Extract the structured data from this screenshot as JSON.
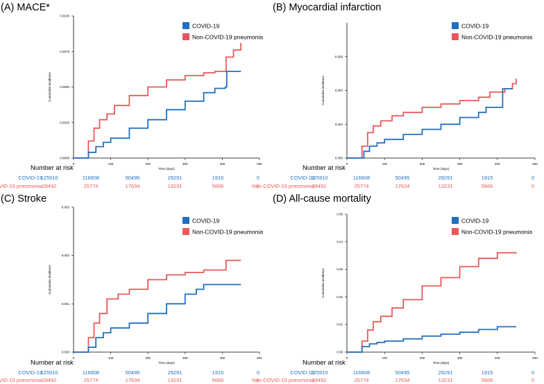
{
  "colors": {
    "covid": "#1f6fbf",
    "noncovid": "#e8585a",
    "axis": "#000000",
    "text": "#000000"
  },
  "risk_table": {
    "label": "Number at risk",
    "rows": [
      {
        "name": "COVID-19",
        "color": "#1f6fbf",
        "counts": [
          "125910",
          "116608",
          "50495",
          "29291",
          "1915",
          "0"
        ]
      },
      {
        "name": "Non-COVID-19 pneumonia",
        "color": "#e8585a",
        "counts": [
          "28492",
          "25774",
          "17634",
          "13231",
          "5666",
          "0"
        ]
      }
    ]
  },
  "chart_data": [
    {
      "type": "line",
      "title": "(A) MACE*",
      "xlabel": "Time (days)",
      "ylabel": "Cumulative incidence",
      "xlim": [
        0,
        500
      ],
      "ylim": [
        0,
        0.01
      ],
      "xticks": [
        0,
        100,
        200,
        300,
        400,
        500
      ],
      "xtick_labels": [
        "0",
        "100",
        "200",
        "300",
        "400",
        "500"
      ],
      "yticks": [
        0,
        0.0025,
        0.005,
        0.0075,
        0.01
      ],
      "ytick_labels": [
        "0.0000",
        "0.0025",
        "0.0050",
        "0.0075",
        "0.0100"
      ],
      "legend": [
        "COVID-19",
        "Non-COVID-19 pneumonia"
      ],
      "series": [
        {
          "name": "COVID-19",
          "x": [
            0,
            30,
            40,
            60,
            80,
            100,
            150,
            200,
            250,
            300,
            350,
            380,
            408,
            412,
            450
          ],
          "y": [
            0,
            0,
            0.0004,
            0.0008,
            0.0011,
            0.0014,
            0.0021,
            0.0027,
            0.0034,
            0.004,
            0.0046,
            0.0049,
            0.005,
            0.0061,
            0.0061
          ]
        },
        {
          "name": "Non-COVID-19 pneumonia",
          "x": [
            0,
            30,
            40,
            55,
            70,
            90,
            110,
            150,
            200,
            250,
            300,
            350,
            380,
            410,
            430,
            450
          ],
          "y": [
            0,
            0,
            0.0012,
            0.0021,
            0.0027,
            0.0031,
            0.0037,
            0.0044,
            0.005,
            0.0055,
            0.0058,
            0.006,
            0.0061,
            0.0071,
            0.0076,
            0.0081
          ]
        }
      ]
    },
    {
      "type": "line",
      "title": "(B) Myocardial infarction",
      "xlabel": "Time (days)",
      "ylabel": "Cumulative incidence",
      "xlim": [
        0,
        500
      ],
      "ylim": [
        0,
        0.008
      ],
      "xticks": [
        0,
        100,
        200,
        300,
        400,
        500
      ],
      "xtick_labels": [
        "0",
        "100",
        "200",
        "300",
        "400",
        "500"
      ],
      "yticks": [
        0,
        0.002,
        0.004,
        0.006
      ],
      "ytick_labels": [
        "0.000",
        "0.002",
        "0.004",
        "0.006"
      ],
      "legend": [
        "COVID-19",
        "Non-COVID-19 pneumonia"
      ],
      "series": [
        {
          "name": "COVID-19",
          "x": [
            0,
            30,
            45,
            60,
            80,
            100,
            150,
            200,
            250,
            300,
            350,
            370,
            412,
            414,
            440
          ],
          "y": [
            0,
            0,
            0.0004,
            0.0007,
            0.0009,
            0.0011,
            0.0014,
            0.0017,
            0.002,
            0.0024,
            0.0027,
            0.003,
            0.003,
            0.0041,
            0.0041
          ]
        },
        {
          "name": "Non-COVID-19 pneumonia",
          "x": [
            0,
            30,
            40,
            55,
            70,
            90,
            120,
            150,
            200,
            250,
            300,
            350,
            380,
            420,
            440,
            450
          ],
          "y": [
            0,
            0,
            0.0007,
            0.0015,
            0.0019,
            0.0022,
            0.0025,
            0.0027,
            0.003,
            0.0032,
            0.0034,
            0.0036,
            0.0039,
            0.0041,
            0.0044,
            0.0047
          ]
        }
      ]
    },
    {
      "type": "line",
      "title": "(C) Stroke",
      "xlabel": "Time (days)",
      "ylabel": "Cumulative incidence",
      "xlim": [
        0,
        500
      ],
      "ylim": [
        0,
        0.003
      ],
      "xticks": [
        0,
        100,
        200,
        300,
        400,
        500
      ],
      "xtick_labels": [
        "0",
        "100",
        "200",
        "300",
        "400",
        "500"
      ],
      "yticks": [
        0,
        0.001,
        0.002,
        0.003
      ],
      "ytick_labels": [
        "0.000",
        "0.001",
        "0.002",
        "0.003"
      ],
      "legend": [
        "COVID-19",
        "Non-COVID-19 pneumonia"
      ],
      "series": [
        {
          "name": "COVID-19",
          "x": [
            0,
            30,
            40,
            60,
            80,
            100,
            150,
            200,
            250,
            300,
            330,
            350,
            450
          ],
          "y": [
            0,
            0,
            0.0001,
            0.0003,
            0.0004,
            0.0005,
            0.0006,
            0.0008,
            0.001,
            0.0012,
            0.0013,
            0.0014,
            0.0014
          ]
        },
        {
          "name": "Non-COVID-19 pneumonia",
          "x": [
            0,
            30,
            40,
            55,
            70,
            90,
            120,
            150,
            200,
            250,
            300,
            350,
            400,
            410,
            420,
            450
          ],
          "y": [
            0,
            0,
            0.0003,
            0.0006,
            0.0008,
            0.0011,
            0.0012,
            0.0013,
            0.0015,
            0.0016,
            0.00165,
            0.0017,
            0.0017,
            0.0019,
            0.0019,
            0.0019
          ]
        }
      ]
    },
    {
      "type": "line",
      "title": "(D) All-cause mortality",
      "xlabel": "Time (days)",
      "ylabel": "Cumulative incidence",
      "xlim": [
        0,
        500
      ],
      "ylim": [
        0,
        0.05
      ],
      "xticks": [
        0,
        100,
        200,
        300,
        400,
        500
      ],
      "xtick_labels": [
        "0",
        "100",
        "200",
        "300",
        "400",
        "500"
      ],
      "yticks": [
        0,
        0.01,
        0.02,
        0.03,
        0.04,
        0.05
      ],
      "ytick_labels": [
        "0.00",
        "0.01",
        "0.02",
        "0.03",
        "0.04",
        "0.05"
      ],
      "legend": [
        "COVID-19",
        "Non-COVID-19 pneumonia"
      ],
      "series": [
        {
          "name": "COVID-19",
          "x": [
            0,
            30,
            40,
            60,
            80,
            100,
            150,
            200,
            250,
            300,
            350,
            400,
            450
          ],
          "y": [
            0,
            0,
            0.002,
            0.003,
            0.0035,
            0.004,
            0.0048,
            0.0058,
            0.0065,
            0.0072,
            0.0082,
            0.0092,
            0.0092
          ]
        },
        {
          "name": "Non-COVID-19 pneumonia",
          "x": [
            0,
            30,
            40,
            55,
            70,
            90,
            120,
            150,
            200,
            250,
            300,
            350,
            400,
            450
          ],
          "y": [
            0,
            0,
            0.004,
            0.008,
            0.011,
            0.013,
            0.016,
            0.019,
            0.024,
            0.027,
            0.031,
            0.034,
            0.036,
            0.0362
          ]
        }
      ]
    }
  ]
}
